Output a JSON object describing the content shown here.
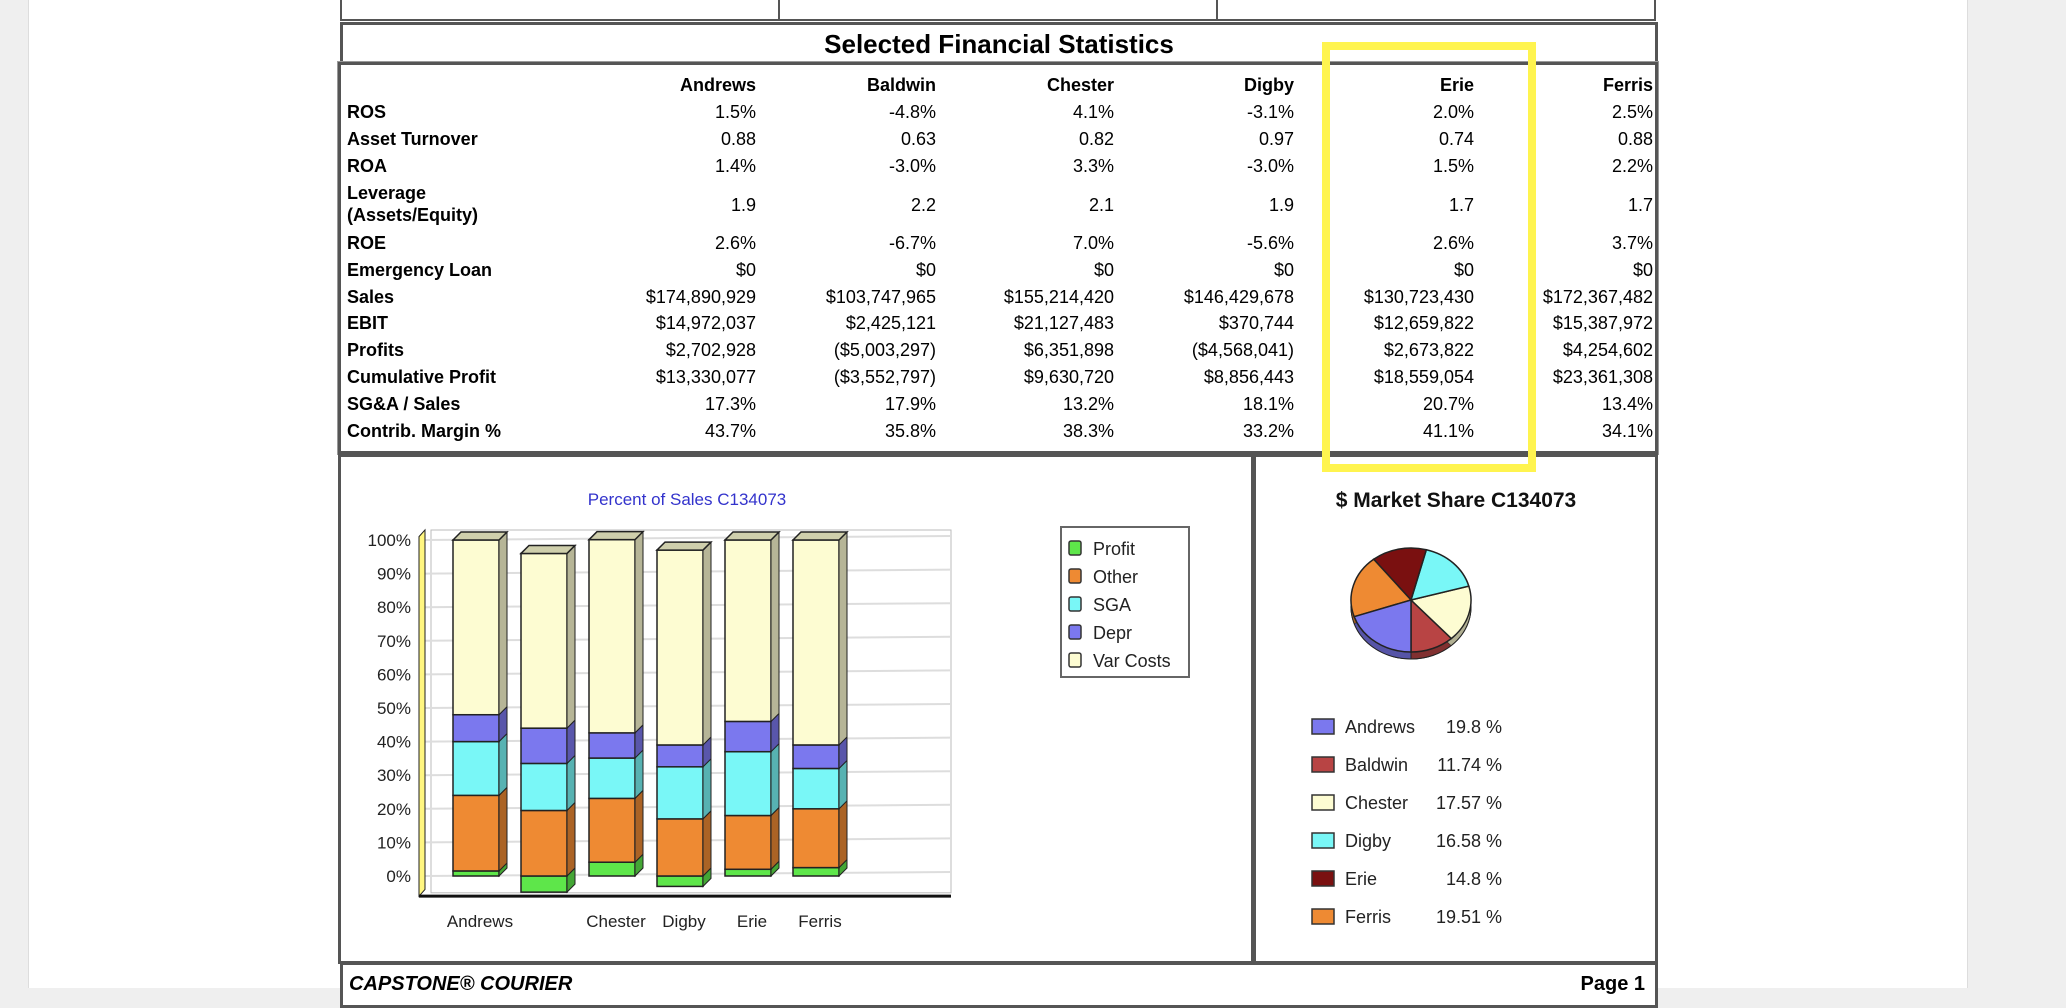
{
  "report": {
    "section_title": "Selected Financial Statistics",
    "footer_left": "CAPSTONE® COURIER",
    "footer_right": "Page 1",
    "highlight_color": "#fff44f",
    "highlighted_column": "Erie"
  },
  "table": {
    "columns": [
      "Andrews",
      "Baldwin",
      "Chester",
      "Digby",
      "Erie",
      "Ferris"
    ],
    "rows": [
      {
        "label": "ROS",
        "values": [
          "1.5%",
          "-4.8%",
          "4.1%",
          "-3.1%",
          "2.0%",
          "2.5%"
        ]
      },
      {
        "label": "Asset Turnover",
        "values": [
          "0.88",
          "0.63",
          "0.82",
          "0.97",
          "0.74",
          "0.88"
        ]
      },
      {
        "label": "ROA",
        "values": [
          "1.4%",
          "-3.0%",
          "3.3%",
          "-3.0%",
          "1.5%",
          "2.2%"
        ]
      },
      {
        "label": "Leverage",
        "label2": "(Assets/Equity)",
        "values": [
          "1.9",
          "2.2",
          "2.1",
          "1.9",
          "1.7",
          "1.7"
        ]
      },
      {
        "label": "ROE",
        "values": [
          "2.6%",
          "-6.7%",
          "7.0%",
          "-5.6%",
          "2.6%",
          "3.7%"
        ]
      },
      {
        "label": "Emergency Loan",
        "values": [
          "$0",
          "$0",
          "$0",
          "$0",
          "$0",
          "$0"
        ]
      },
      {
        "label": "Sales",
        "values": [
          "$174,890,929",
          "$103,747,965",
          "$155,214,420",
          "$146,429,678",
          "$130,723,430",
          "$172,367,482"
        ]
      },
      {
        "label": "EBIT",
        "values": [
          "$14,972,037",
          "$2,425,121",
          "$21,127,483",
          "$370,744",
          "$12,659,822",
          "$15,387,972"
        ]
      },
      {
        "label": "Profits",
        "values": [
          "$2,702,928",
          "($5,003,297)",
          "$6,351,898",
          "($4,568,041)",
          "$2,673,822",
          "$4,254,602"
        ]
      },
      {
        "label": "Cumulative Profit",
        "values": [
          "$13,330,077",
          "($3,552,797)",
          "$9,630,720",
          "$8,856,443",
          "$18,559,054",
          "$23,361,308"
        ]
      },
      {
        "label": "SG&A / Sales",
        "values": [
          "17.3%",
          "17.9%",
          "13.2%",
          "18.1%",
          "20.7%",
          "13.4%"
        ]
      },
      {
        "label": "Contrib. Margin %",
        "values": [
          "43.7%",
          "35.8%",
          "38.3%",
          "33.2%",
          "41.1%",
          "34.1%"
        ]
      }
    ]
  },
  "chart_data": [
    {
      "type": "bar",
      "stacked": true,
      "title": "Percent of Sales  C134073",
      "categories": [
        "Andrews",
        "Baldwin",
        "Chester",
        "Digby",
        "Erie",
        "Ferris"
      ],
      "tick_labels_shown": [
        "Andrews",
        "",
        "Chester",
        "Digby",
        "Erie",
        "Ferris"
      ],
      "yticks": [
        "0%",
        "10%",
        "20%",
        "30%",
        "40%",
        "50%",
        "60%",
        "70%",
        "80%",
        "90%",
        "100%"
      ],
      "ylim": [
        -5,
        100
      ],
      "grid": true,
      "legend_position": "right",
      "series": [
        {
          "name": "Profit",
          "color": "#5ee64a",
          "values": [
            1.5,
            -4.8,
            4.1,
            -3.1,
            2.0,
            2.5
          ]
        },
        {
          "name": "Other",
          "color": "#ee8a33",
          "values": [
            22.5,
            19.5,
            19,
            17,
            16,
            17.5
          ]
        },
        {
          "name": "SGA",
          "color": "#79f7f7",
          "values": [
            16,
            14,
            12,
            15.5,
            19,
            12
          ]
        },
        {
          "name": "Depr",
          "color": "#7b78ee",
          "values": [
            8,
            10.5,
            7.5,
            6.5,
            9,
            7
          ]
        },
        {
          "name": "Var Costs",
          "color": "#fdfcd2",
          "values": [
            52,
            52,
            57.5,
            58,
            54,
            61
          ]
        }
      ]
    },
    {
      "type": "pie",
      "title": "$ Market Share  C134073",
      "legend_position": "bottom",
      "slices": [
        {
          "name": "Andrews",
          "value": 19.8,
          "label": "19.8 %",
          "color": "#7b78ee"
        },
        {
          "name": "Baldwin",
          "value": 11.74,
          "label": "11.74 %",
          "color": "#b84444"
        },
        {
          "name": "Chester",
          "value": 17.57,
          "label": "17.57 %",
          "color": "#fdfcd2"
        },
        {
          "name": "Digby",
          "value": 16.58,
          "label": "16.58 %",
          "color": "#79f7f7"
        },
        {
          "name": "Erie",
          "value": 14.8,
          "label": "14.8 %",
          "color": "#7a1010"
        },
        {
          "name": "Ferris",
          "value": 19.51,
          "label": "19.51 %",
          "color": "#ee8a33"
        }
      ]
    }
  ]
}
